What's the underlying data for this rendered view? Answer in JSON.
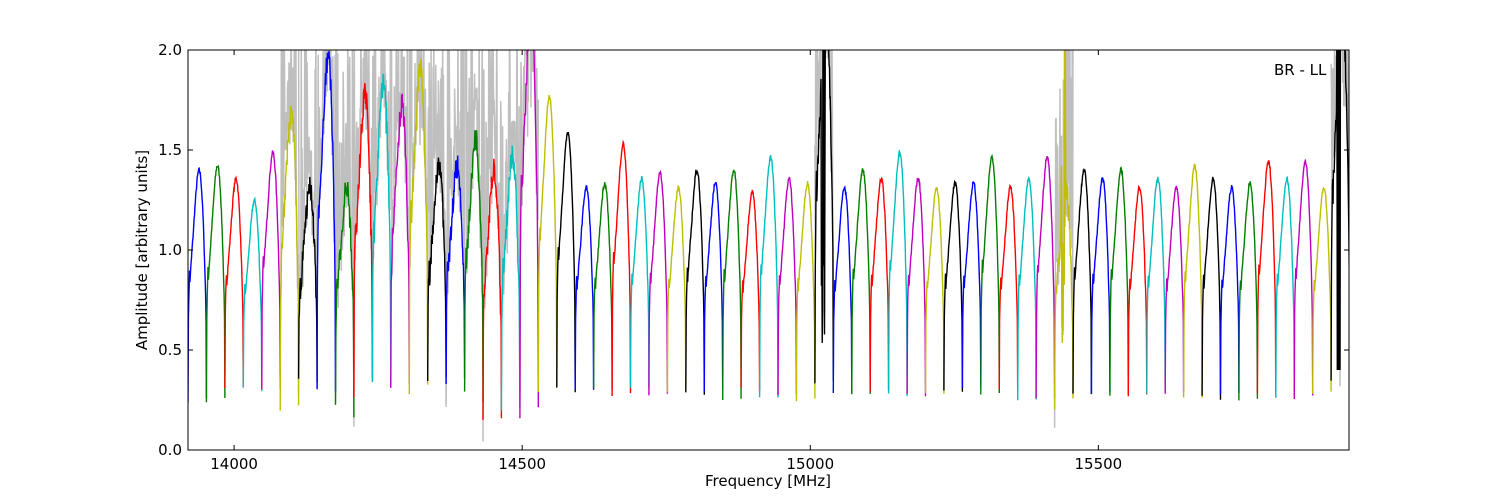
{
  "chart_data": {
    "type": "line",
    "title": "",
    "xlabel": "Frequency [MHz]",
    "ylabel": "Amplitude [arbitrary units]",
    "xlim": [
      13920,
      15935
    ],
    "ylim": [
      0.0,
      2.0
    ],
    "x_ticks": [
      14000,
      14500,
      15000,
      15500
    ],
    "y_ticks": [
      0.0,
      0.5,
      1.0,
      1.5,
      2.0
    ],
    "y_tick_labels": [
      "0.0",
      "0.5",
      "1.0",
      "1.5",
      "2.0"
    ],
    "grid": false,
    "annotation": "BR - LL",
    "raw_series": {
      "color": "#bfbfbf",
      "description": "unflagged data (gray)"
    },
    "channel_width_mhz": 32,
    "first_channel_start_mhz": 13920,
    "num_channels": 63,
    "color_cycle": [
      "#0000ff",
      "#007f00",
      "#ff0000",
      "#00bfbf",
      "#bf00bf",
      "#bfbf00",
      "#000000"
    ],
    "channel_peaks": [
      1.28,
      1.3,
      1.24,
      1.14,
      1.36,
      1.55,
      1.2,
      1.8,
      1.2,
      1.63,
      1.68,
      1.58,
      1.75,
      1.3,
      1.3,
      1.42,
      1.28,
      1.34,
      2.0,
      1.62,
      1.45,
      1.2,
      1.22,
      1.4,
      1.24,
      1.27,
      1.2,
      1.28,
      1.22,
      1.28,
      1.18,
      1.34,
      1.24,
      1.22,
      2.0,
      1.2,
      1.28,
      1.24,
      1.36,
      1.24,
      1.2,
      1.22,
      1.22,
      1.34,
      1.2,
      1.24,
      1.34,
      1.2,
      1.28,
      1.24,
      1.28,
      1.2,
      1.24,
      1.2,
      1.3,
      1.24,
      1.2,
      1.22,
      1.32,
      1.24,
      1.32,
      1.2,
      2.0
    ],
    "channel_troughs": [
      0.25,
      0.25,
      0.3,
      0.3,
      0.3,
      0.2,
      0.3,
      0.25,
      0.22,
      0.3,
      0.3,
      0.3,
      0.3,
      0.32,
      0.33,
      0.28,
      0.2,
      0.18,
      0.2,
      0.3,
      0.3,
      0.3,
      0.3,
      0.28,
      0.3,
      0.28,
      0.3,
      0.28,
      0.3,
      0.26,
      0.3,
      0.26,
      0.28,
      0.25,
      0.3,
      0.28,
      0.28,
      0.3,
      0.28,
      0.28,
      0.28,
      0.3,
      0.3,
      0.28,
      0.3,
      0.26,
      0.25,
      0.24,
      0.28,
      0.28,
      0.28,
      0.28,
      0.28,
      0.28,
      0.25,
      0.26,
      0.28,
      0.26,
      0.28,
      0.27,
      0.26,
      0.28,
      0.3
    ]
  }
}
